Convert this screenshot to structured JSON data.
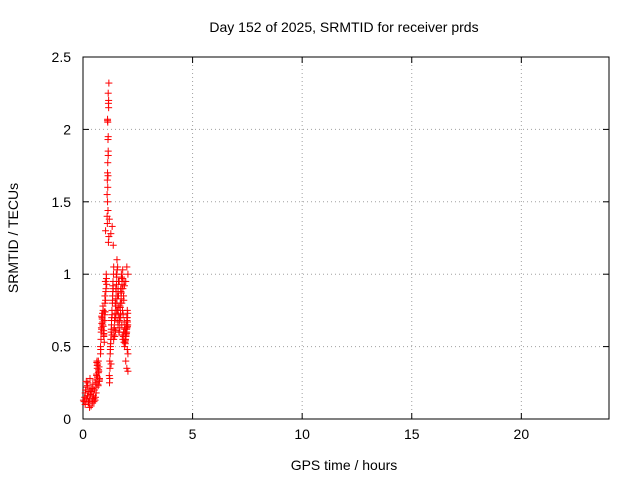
{
  "chart_data": {
    "type": "scatter",
    "title": "Day 152 of 2025, SRMTID for receiver prds",
    "xlabel": "GPS time / hours",
    "ylabel": "SRMTID / TECUs",
    "xlim": [
      0,
      24
    ],
    "ylim": [
      0,
      2.5
    ],
    "xticks": [
      0,
      5,
      10,
      15,
      20
    ],
    "yticks": [
      0,
      0.5,
      1,
      1.5,
      2,
      2.5
    ],
    "xtick_labels": [
      "0",
      "5",
      "10",
      "15",
      "20"
    ],
    "ytick_labels": [
      "0",
      "0.5",
      "1",
      "1.5",
      "2",
      "2.5"
    ],
    "grid": true,
    "legend": "none",
    "marker": "plus",
    "color": "#ff0000",
    "series": [
      {
        "x": [
          0.02,
          0.05,
          0.08,
          0.1,
          0.12,
          0.15,
          0.18,
          0.2,
          0.22,
          0.25,
          0.27,
          0.3,
          0.32,
          0.35,
          0.37,
          0.4,
          0.42,
          0.45,
          0.47,
          0.5,
          0.52,
          0.55,
          0.57,
          0.6,
          0.1,
          0.2,
          0.3,
          0.4,
          0.5,
          0.15,
          0.25,
          0.35,
          0.45,
          0.55,
          0.22,
          0.33,
          0.44,
          0.6,
          0.62,
          0.65,
          0.67,
          0.7,
          0.72,
          0.75,
          0.6,
          0.65,
          0.7,
          0.75,
          0.63,
          0.68,
          0.73,
          0.62,
          0.66,
          0.71,
          0.74,
          0.64,
          0.69,
          0.8,
          0.82,
          0.85,
          0.87,
          0.9,
          0.92,
          0.95,
          0.97,
          1.0,
          0.8,
          0.83,
          0.86,
          0.89,
          0.92,
          0.95,
          0.98,
          0.81,
          0.84,
          0.88,
          0.91,
          0.94,
          0.97,
          0.85,
          0.9,
          0.95,
          1.0,
          1.02,
          1.05,
          1.03,
          1.07,
          1.0,
          1.04,
          1.08,
          1.01,
          1.06,
          1.03,
          1.1,
          1.12,
          1.15,
          1.13,
          1.17,
          1.11,
          1.14,
          1.16,
          1.12,
          1.15,
          1.13,
          1.18,
          1.1,
          1.14,
          1.17,
          1.12,
          1.16,
          1.11,
          1.13,
          1.15,
          1.12,
          1.14,
          1.18,
          1.2,
          1.15,
          1.2,
          1.22,
          1.25,
          1.27,
          1.3,
          1.32,
          1.35,
          1.37,
          1.4,
          1.21,
          1.24,
          1.28,
          1.31,
          1.34,
          1.38,
          1.23,
          1.26,
          1.29,
          1.33,
          1.36,
          1.39,
          1.22,
          1.3,
          1.35,
          1.25,
          1.32,
          1.28,
          1.36,
          1.38,
          1.33,
          1.27,
          1.4,
          1.42,
          1.45,
          1.47,
          1.5,
          1.52,
          1.55,
          1.57,
          1.6,
          1.62,
          1.65,
          1.41,
          1.44,
          1.48,
          1.51,
          1.54,
          1.58,
          1.61,
          1.64,
          1.43,
          1.46,
          1.5,
          1.53,
          1.56,
          1.59,
          1.63,
          1.45,
          1.5,
          1.55,
          1.6,
          1.48,
          1.52,
          1.57,
          1.62,
          1.65,
          1.67,
          1.7,
          1.72,
          1.75,
          1.77,
          1.8,
          1.82,
          1.85,
          1.87,
          1.9,
          1.66,
          1.69,
          1.73,
          1.76,
          1.79,
          1.83,
          1.86,
          1.89,
          1.68,
          1.71,
          1.74,
          1.78,
          1.81,
          1.84,
          1.88,
          1.7,
          1.75,
          1.8,
          1.85,
          1.72,
          1.77,
          1.82,
          1.87,
          1.9,
          1.92,
          1.95,
          1.97,
          2.0,
          2.02,
          2.05,
          1.91,
          1.94,
          1.98,
          2.01,
          2.04,
          1.93,
          1.96,
          1.99,
          2.03,
          1.95,
          2.0,
          2.05,
          1.92,
          1.97,
          2.02,
          1.94,
          1.99,
          2.04,
          1.96,
          2.01,
          1.93,
          1.98,
          2.03,
          2.0,
          2.05,
          1.95,
          2.02
        ],
        "y": [
          0.13,
          0.12,
          0.15,
          0.18,
          0.2,
          0.14,
          0.22,
          0.16,
          0.25,
          0.11,
          0.19,
          0.13,
          0.28,
          0.17,
          0.09,
          0.21,
          0.14,
          0.24,
          0.16,
          0.12,
          0.2,
          0.27,
          0.15,
          0.18,
          0.1,
          0.23,
          0.08,
          0.19,
          0.14,
          0.26,
          0.12,
          0.17,
          0.21,
          0.13,
          0.16,
          0.2,
          0.11,
          0.25,
          0.3,
          0.35,
          0.38,
          0.4,
          0.33,
          0.28,
          0.22,
          0.37,
          0.32,
          0.27,
          0.39,
          0.24,
          0.36,
          0.31,
          0.29,
          0.34,
          0.26,
          0.4,
          0.23,
          0.45,
          0.55,
          0.62,
          0.7,
          0.65,
          0.75,
          0.58,
          0.68,
          0.72,
          0.5,
          0.6,
          0.66,
          0.73,
          0.64,
          0.57,
          0.74,
          0.48,
          0.63,
          0.69,
          0.78,
          0.61,
          0.53,
          0.71,
          0.67,
          0.59,
          0.85,
          0.95,
          0.9,
          1.3,
          0.97,
          0.8,
          0.88,
          0.93,
          0.74,
          1.0,
          0.82,
          1.55,
          1.7,
          1.85,
          2.05,
          2.2,
          1.65,
          1.93,
          2.18,
          2.06,
          2.25,
          1.77,
          2.32,
          1.4,
          1.68,
          2.15,
          1.5,
          1.22,
          1.35,
          1.6,
          1.95,
          2.07,
          1.44,
          1.26,
          1.38,
          1.82,
          0.3,
          0.4,
          0.5,
          0.55,
          0.65,
          0.75,
          0.85,
          0.95,
          1.05,
          0.25,
          0.45,
          0.6,
          0.7,
          0.8,
          0.9,
          0.35,
          0.52,
          0.62,
          0.72,
          0.88,
          1.0,
          0.28,
          0.68,
          0.82,
          0.48,
          0.58,
          0.38,
          0.92,
          1.2,
          1.33,
          1.28,
          0.55,
          0.62,
          0.7,
          0.8,
          0.9,
          1.0,
          1.1,
          0.75,
          0.65,
          0.85,
          0.95,
          0.58,
          0.68,
          0.78,
          0.88,
          0.98,
          1.05,
          0.72,
          0.6,
          0.63,
          0.73,
          0.83,
          0.93,
          1.03,
          0.67,
          0.77,
          0.57,
          0.7,
          0.8,
          0.9,
          0.61,
          0.75,
          0.85,
          0.95,
          0.6,
          0.7,
          0.8,
          0.9,
          1.0,
          0.65,
          0.75,
          0.55,
          0.85,
          0.95,
          0.62,
          0.68,
          0.78,
          0.88,
          0.98,
          0.58,
          0.72,
          0.82,
          0.92,
          0.63,
          0.73,
          0.83,
          0.93,
          1.03,
          0.57,
          0.67,
          0.77,
          0.87,
          0.97,
          0.6,
          0.7,
          0.8,
          0.9,
          0.53,
          0.5,
          0.55,
          0.6,
          0.65,
          0.7,
          0.75,
          0.45,
          0.53,
          0.58,
          0.63,
          0.68,
          0.73,
          0.52,
          0.57,
          0.62,
          0.67,
          0.4,
          0.35,
          0.33,
          0.6,
          0.65,
          0.7,
          0.55,
          0.6,
          0.65,
          0.58,
          0.63,
          0.54,
          0.59,
          0.64,
          1.05,
          1.0,
          0.95,
          0.48
        ]
      }
    ]
  }
}
